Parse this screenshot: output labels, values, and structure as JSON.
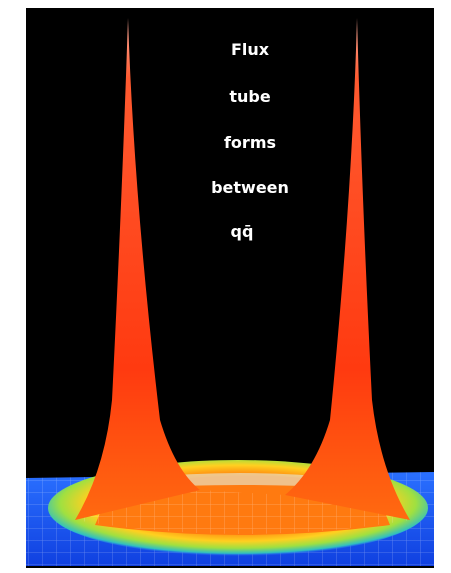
{
  "caption": {
    "lines": [
      "Flux",
      "tube",
      "forms",
      "between",
      "qq̄"
    ]
  }
}
